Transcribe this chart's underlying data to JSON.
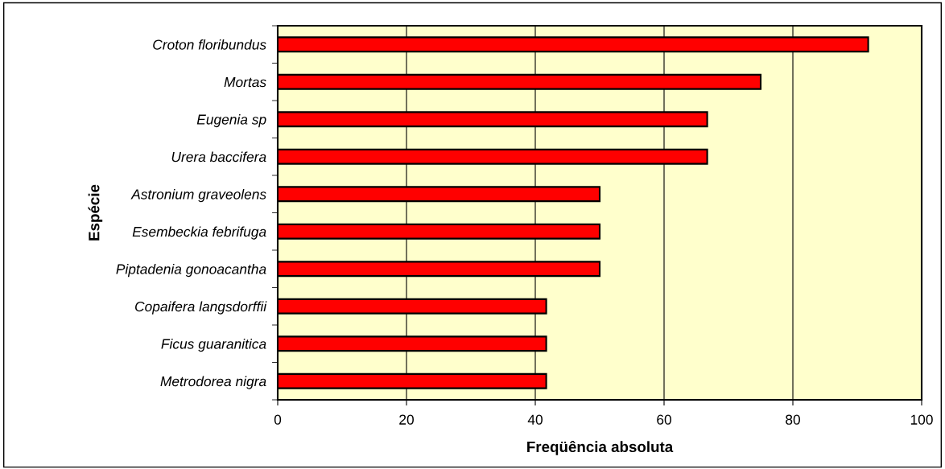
{
  "chart_data": {
    "type": "bar",
    "orientation": "horizontal",
    "xlabel": "Freqüência absoluta",
    "ylabel": "Espécie",
    "categories": [
      "Croton floribundus",
      "Mortas",
      "Eugenia sp",
      "Urera baccifera",
      "Astronium graveolens",
      "Esembeckia febrifuga",
      "Piptadenia gonoacantha",
      "Copaifera langsdorffii",
      "Ficus guaranitica",
      "Metrodorea nigra"
    ],
    "values": [
      91.7,
      75,
      66.7,
      66.7,
      50,
      50,
      50,
      41.7,
      41.7,
      41.7
    ],
    "color": "#ff0000",
    "xlim": [
      0,
      100
    ],
    "xticks": [
      0,
      20,
      40,
      60,
      80,
      100
    ],
    "grid": "x"
  }
}
